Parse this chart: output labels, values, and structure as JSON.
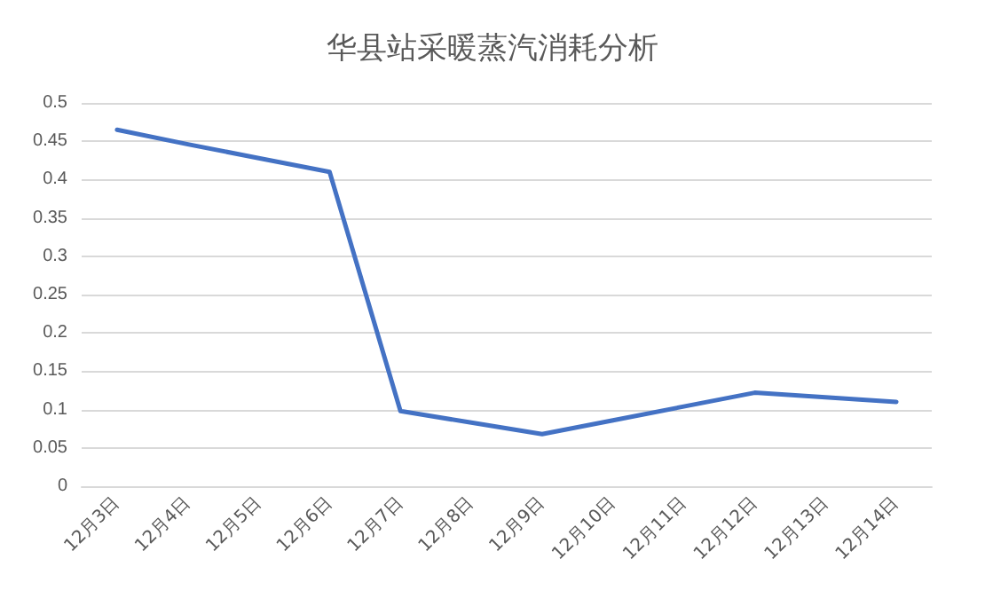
{
  "chart_data": {
    "type": "line",
    "title": "华县站采暖蒸汽消耗分析",
    "categories": [
      "12月3日",
      "12月4日",
      "12月5日",
      "12月6日",
      "12月7日",
      "12月8日",
      "12月9日",
      "12月10日",
      "12月11日",
      "12月12日",
      "12月13日",
      "12月14日"
    ],
    "series": [
      {
        "color": "#4472c4",
        "values": [
          0.465,
          0.446,
          0.428,
          0.41,
          0.098,
          0.083,
          0.068,
          0.086,
          0.104,
          0.122,
          0.116,
          0.11
        ]
      }
    ],
    "ylim": [
      0,
      0.5
    ],
    "yticks": [
      0,
      0.05,
      0.1,
      0.15,
      0.2,
      0.25,
      0.3,
      0.35,
      0.4,
      0.45,
      0.5
    ],
    "grid": "y",
    "marker": "none",
    "line_style": "solid"
  }
}
